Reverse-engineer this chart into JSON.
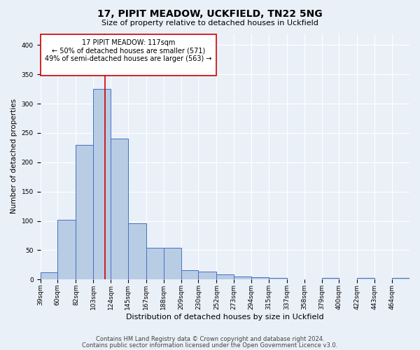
{
  "title1": "17, PIPIT MEADOW, UCKFIELD, TN22 5NG",
  "title2": "Size of property relative to detached houses in Uckfield",
  "xlabel": "Distribution of detached houses by size in Uckfield",
  "ylabel": "Number of detached properties",
  "bin_labels": [
    "39sqm",
    "60sqm",
    "82sqm",
    "103sqm",
    "124sqm",
    "145sqm",
    "167sqm",
    "188sqm",
    "209sqm",
    "230sqm",
    "252sqm",
    "273sqm",
    "294sqm",
    "315sqm",
    "337sqm",
    "358sqm",
    "379sqm",
    "400sqm",
    "422sqm",
    "443sqm",
    "464sqm"
  ],
  "bar_values": [
    12,
    102,
    230,
    325,
    240,
    96,
    54,
    54,
    16,
    14,
    9,
    5,
    4,
    3,
    0,
    0,
    3,
    0,
    3,
    0,
    3
  ],
  "bar_color": "#b8cce4",
  "bar_edge_color": "#4472c4",
  "bg_color": "#eaf0f8",
  "property_sqm": 117,
  "property_label": "17 PIPIT MEADOW: 117sqm",
  "annotation_line1": "← 50% of detached houses are smaller (571)",
  "annotation_line2": "49% of semi-detached houses are larger (563) →",
  "vline_color": "#cc0000",
  "box_edge_color": "#cc0000",
  "footer1": "Contains HM Land Registry data © Crown copyright and database right 2024.",
  "footer2": "Contains public sector information licensed under the Open Government Licence v3.0.",
  "ylim": [
    0,
    420
  ],
  "bin_edges": [
    39,
    60,
    82,
    103,
    124,
    145,
    167,
    188,
    209,
    230,
    252,
    273,
    294,
    315,
    337,
    358,
    379,
    400,
    422,
    443,
    464,
    485
  ],
  "title1_fontsize": 10,
  "title2_fontsize": 8,
  "xlabel_fontsize": 8,
  "ylabel_fontsize": 7.5,
  "tick_fontsize": 6.5,
  "footer_fontsize": 6,
  "annot_fontsize": 7
}
